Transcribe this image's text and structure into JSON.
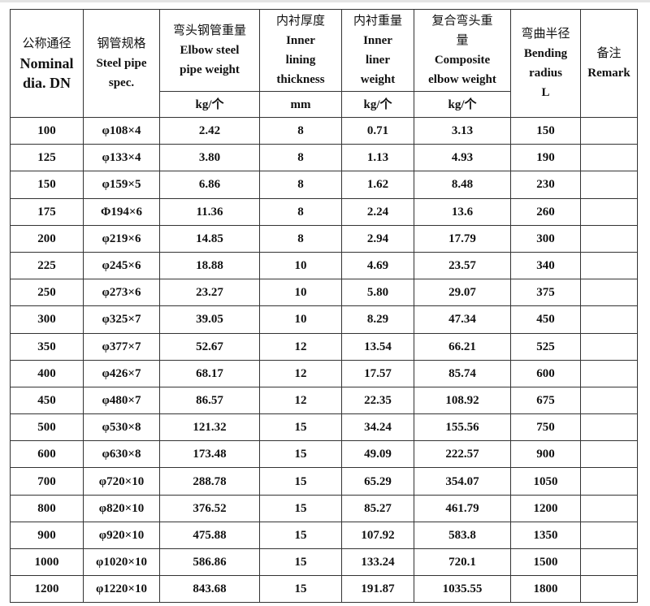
{
  "headers": [
    {
      "zh": "公称通径",
      "en": "Nominal",
      "en2": "dia. DN"
    },
    {
      "zh": "钢管规格",
      "en": "Steel pipe",
      "en2": "spec."
    },
    {
      "zh": "弯头钢管重量",
      "en": "Elbow steel",
      "en2": "pipe weight",
      "unit": "kg/个"
    },
    {
      "zh": "内衬厚度",
      "en": "Inner",
      "en2": "lining",
      "en3": "thickness",
      "unit": "mm"
    },
    {
      "zh": "内衬重量",
      "en": "Inner",
      "en2": "liner",
      "en3": "weight",
      "unit": "kg/个"
    },
    {
      "zh": "复合弯头重",
      "zh2": "量",
      "en": "Composite",
      "en2": "elbow weight",
      "unit": "kg/个"
    },
    {
      "zh": "弯曲半径",
      "en": "Bending",
      "en2": "radius",
      "en3": "L"
    },
    {
      "zh": "备注",
      "en": "Remark"
    }
  ],
  "rows": [
    [
      "100",
      "φ108×4",
      "2.42",
      "8",
      "0.71",
      "3.13",
      "150",
      ""
    ],
    [
      "125",
      "φ133×4",
      "3.80",
      "8",
      "1.13",
      "4.93",
      "190",
      ""
    ],
    [
      "150",
      "φ159×5",
      "6.86",
      "8",
      "1.62",
      "8.48",
      "230",
      ""
    ],
    [
      "175",
      "Φ194×6",
      "11.36",
      "8",
      "2.24",
      "13.6",
      "260",
      ""
    ],
    [
      "200",
      "φ219×6",
      "14.85",
      "8",
      "2.94",
      "17.79",
      "300",
      ""
    ],
    [
      "225",
      "φ245×6",
      "18.88",
      "10",
      "4.69",
      "23.57",
      "340",
      ""
    ],
    [
      "250",
      "φ273×6",
      "23.27",
      "10",
      "5.80",
      "29.07",
      "375",
      ""
    ],
    [
      "300",
      "φ325×7",
      "39.05",
      "10",
      "8.29",
      "47.34",
      "450",
      ""
    ],
    [
      "350",
      "φ377×7",
      "52.67",
      "12",
      "13.54",
      "66.21",
      "525",
      ""
    ],
    [
      "400",
      "φ426×7",
      "68.17",
      "12",
      "17.57",
      "85.74",
      "600",
      ""
    ],
    [
      "450",
      "φ480×7",
      "86.57",
      "12",
      "22.35",
      "108.92",
      "675",
      ""
    ],
    [
      "500",
      "φ530×8",
      "121.32",
      "15",
      "34.24",
      "155.56",
      "750",
      ""
    ],
    [
      "600",
      "φ630×8",
      "173.48",
      "15",
      "49.09",
      "222.57",
      "900",
      ""
    ],
    [
      "700",
      "φ720×10",
      "288.78",
      "15",
      "65.29",
      "354.07",
      "1050",
      ""
    ],
    [
      "800",
      "φ820×10",
      "376.52",
      "15",
      "85.27",
      "461.79",
      "1200",
      ""
    ],
    [
      "900",
      "φ920×10",
      "475.88",
      "15",
      "107.92",
      "583.8",
      "1350",
      ""
    ],
    [
      "1000",
      "φ1020×10",
      "586.86",
      "15",
      "133.24",
      "720.1",
      "1500",
      ""
    ],
    [
      "1200",
      "φ1220×10",
      "843.68",
      "15",
      "191.87",
      "1035.55",
      "1800",
      ""
    ]
  ]
}
